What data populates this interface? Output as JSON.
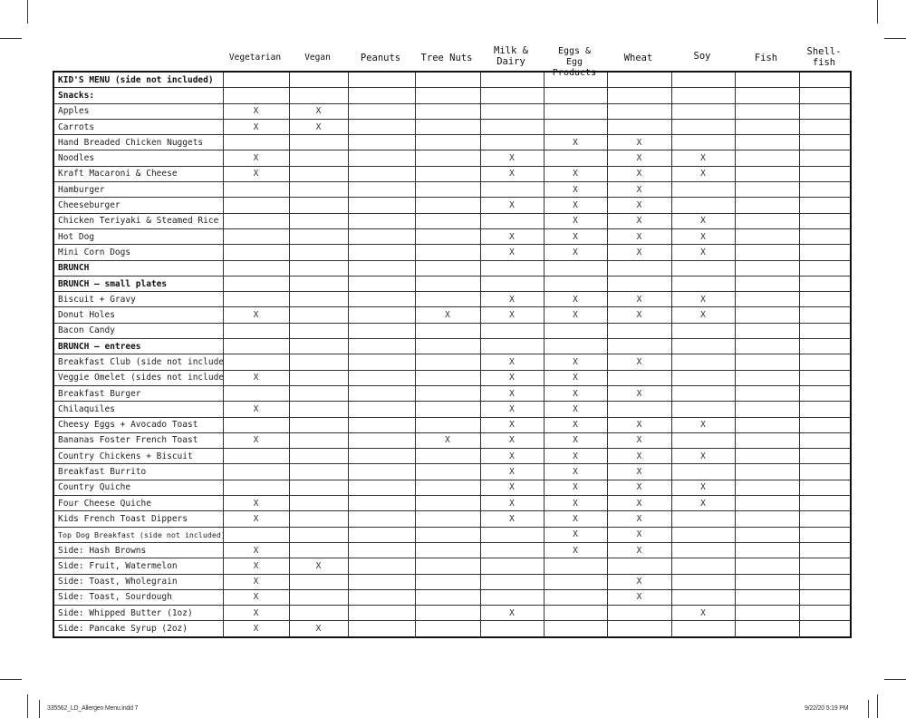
{
  "columns": [
    "Vegetarian",
    "Vegan",
    "Peanuts",
    "Tree Nuts",
    "Milk & Dairy",
    "Eggs & Egg Products",
    "Wheat",
    "Soy",
    "Fish",
    "Shell-fish"
  ],
  "rows": [
    {
      "name": "KID'S MENU (side not included)",
      "bold": true,
      "marks": [
        "",
        "",
        "",
        "",
        "",
        "",
        "",
        "",
        "",
        ""
      ]
    },
    {
      "name": "Snacks:",
      "bold": true,
      "marks": [
        "",
        "",
        "",
        "",
        "",
        "",
        "",
        "",
        "",
        ""
      ]
    },
    {
      "name": "Apples",
      "marks": [
        "X",
        "X",
        "",
        "",
        "",
        "",
        "",
        "",
        "",
        ""
      ]
    },
    {
      "name": "Carrots",
      "marks": [
        "X",
        "X",
        "",
        "",
        "",
        "",
        "",
        "",
        "",
        ""
      ]
    },
    {
      "name": "Hand Breaded Chicken Nuggets",
      "marks": [
        "",
        "",
        "",
        "",
        "",
        "X",
        "X",
        "",
        "",
        ""
      ]
    },
    {
      "name": "Noodles",
      "marks": [
        "X",
        "",
        "",
        "",
        "X",
        "",
        "X",
        "X",
        "",
        ""
      ]
    },
    {
      "name": "Kraft Macaroni & Cheese",
      "marks": [
        "X",
        "",
        "",
        "",
        "X",
        "X",
        "X",
        "X",
        "",
        ""
      ]
    },
    {
      "name": "Hamburger",
      "marks": [
        "",
        "",
        "",
        "",
        "",
        "X",
        "X",
        "",
        "",
        ""
      ]
    },
    {
      "name": "Cheeseburger",
      "marks": [
        "",
        "",
        "",
        "",
        "X",
        "X",
        "X",
        "",
        "",
        ""
      ]
    },
    {
      "name": "Chicken Teriyaki & Steamed Rice",
      "marks": [
        "",
        "",
        "",
        "",
        "",
        "X",
        "X",
        "X",
        "",
        ""
      ]
    },
    {
      "name": "Hot Dog",
      "marks": [
        "",
        "",
        "",
        "",
        "X",
        "X",
        "X",
        "X",
        "",
        ""
      ]
    },
    {
      "name": "Mini Corn Dogs",
      "marks": [
        "",
        "",
        "",
        "",
        "X",
        "X",
        "X",
        "X",
        "",
        ""
      ]
    },
    {
      "name": "BRUNCH",
      "bold": true,
      "marks": [
        "",
        "",
        "",
        "",
        "",
        "",
        "",
        "",
        "",
        ""
      ]
    },
    {
      "name": "BRUNCH – small plates",
      "bold": true,
      "marks": [
        "",
        "",
        "",
        "",
        "",
        "",
        "",
        "",
        "",
        ""
      ]
    },
    {
      "name": "Biscuit + Gravy",
      "marks": [
        "",
        "",
        "",
        "",
        "X",
        "X",
        "X",
        "X",
        "",
        ""
      ]
    },
    {
      "name": "Donut Holes",
      "marks": [
        "X",
        "",
        "",
        "X",
        "X",
        "X",
        "X",
        "X",
        "",
        ""
      ]
    },
    {
      "name": "Bacon Candy",
      "marks": [
        "",
        "",
        "",
        "",
        "",
        "",
        "",
        "",
        "",
        ""
      ]
    },
    {
      "name": "BRUNCH – entrees",
      "bold": true,
      "marks": [
        "",
        "",
        "",
        "",
        "",
        "",
        "",
        "",
        "",
        ""
      ]
    },
    {
      "name": "Breakfast Club (side not included)",
      "marks": [
        "",
        "",
        "",
        "",
        "X",
        "X",
        "X",
        "",
        "",
        ""
      ]
    },
    {
      "name": "Veggie Omelet (sides not included)",
      "marks": [
        "X",
        "",
        "",
        "",
        "X",
        "X",
        "",
        "",
        "",
        ""
      ]
    },
    {
      "name": "Breakfast Burger",
      "marks": [
        "",
        "",
        "",
        "",
        "X",
        "X",
        "X",
        "",
        "",
        ""
      ]
    },
    {
      "name": "Chilaquiles",
      "marks": [
        "X",
        "",
        "",
        "",
        "X",
        "X",
        "",
        "",
        "",
        ""
      ]
    },
    {
      "name": "Cheesy Eggs + Avocado Toast",
      "marks": [
        "",
        "",
        "",
        "",
        "X",
        "X",
        "X",
        "X",
        "",
        ""
      ]
    },
    {
      "name": "Bananas Foster French Toast",
      "marks": [
        "X",
        "",
        "",
        "X",
        "X",
        "X",
        "X",
        "",
        "",
        ""
      ]
    },
    {
      "name": "Country Chickens + Biscuit",
      "marks": [
        "",
        "",
        "",
        "",
        "X",
        "X",
        "X",
        "X",
        "",
        ""
      ]
    },
    {
      "name": "Breakfast Burrito",
      "marks": [
        "",
        "",
        "",
        "",
        "X",
        "X",
        "X",
        "",
        "",
        ""
      ]
    },
    {
      "name": "Country Quiche",
      "marks": [
        "",
        "",
        "",
        "",
        "X",
        "X",
        "X",
        "X",
        "",
        ""
      ]
    },
    {
      "name": "Four Cheese Quiche",
      "marks": [
        "X",
        "",
        "",
        "",
        "X",
        "X",
        "X",
        "X",
        "",
        ""
      ]
    },
    {
      "name": "Kids French Toast Dippers",
      "marks": [
        "X",
        "",
        "",
        "",
        "X",
        "X",
        "X",
        "",
        "",
        ""
      ]
    },
    {
      "name": "Top Dog Breakfast  (side not included)",
      "small": true,
      "marks": [
        "",
        "",
        "",
        "",
        "",
        "X",
        "X",
        "",
        "",
        ""
      ]
    },
    {
      "name": "Side: Hash Browns",
      "marks": [
        "X",
        "",
        "",
        "",
        "",
        "X",
        "X",
        "",
        "",
        ""
      ]
    },
    {
      "name": "Side: Fruit, Watermelon",
      "marks": [
        "X",
        "X",
        "",
        "",
        "",
        "",
        "",
        "",
        "",
        ""
      ]
    },
    {
      "name": "Side: Toast, Wholegrain",
      "marks": [
        "X",
        "",
        "",
        "",
        "",
        "",
        "X",
        "",
        "",
        ""
      ]
    },
    {
      "name": "Side: Toast, Sourdough",
      "marks": [
        "X",
        "",
        "",
        "",
        "",
        "",
        "X",
        "",
        "",
        ""
      ]
    },
    {
      "name": "Side: Whipped Butter (1oz)",
      "marks": [
        "X",
        "",
        "",
        "",
        "X",
        "",
        "",
        "X",
        "",
        ""
      ]
    },
    {
      "name": "Side: Pancake Syrup (2oz)",
      "marks": [
        "X",
        "X",
        "",
        "",
        "",
        "",
        "",
        "",
        "",
        ""
      ]
    }
  ],
  "footer": {
    "file": "335562_LD_Allergen Menu.indd   7",
    "timestamp": "9/22/20   5:19 PM"
  }
}
